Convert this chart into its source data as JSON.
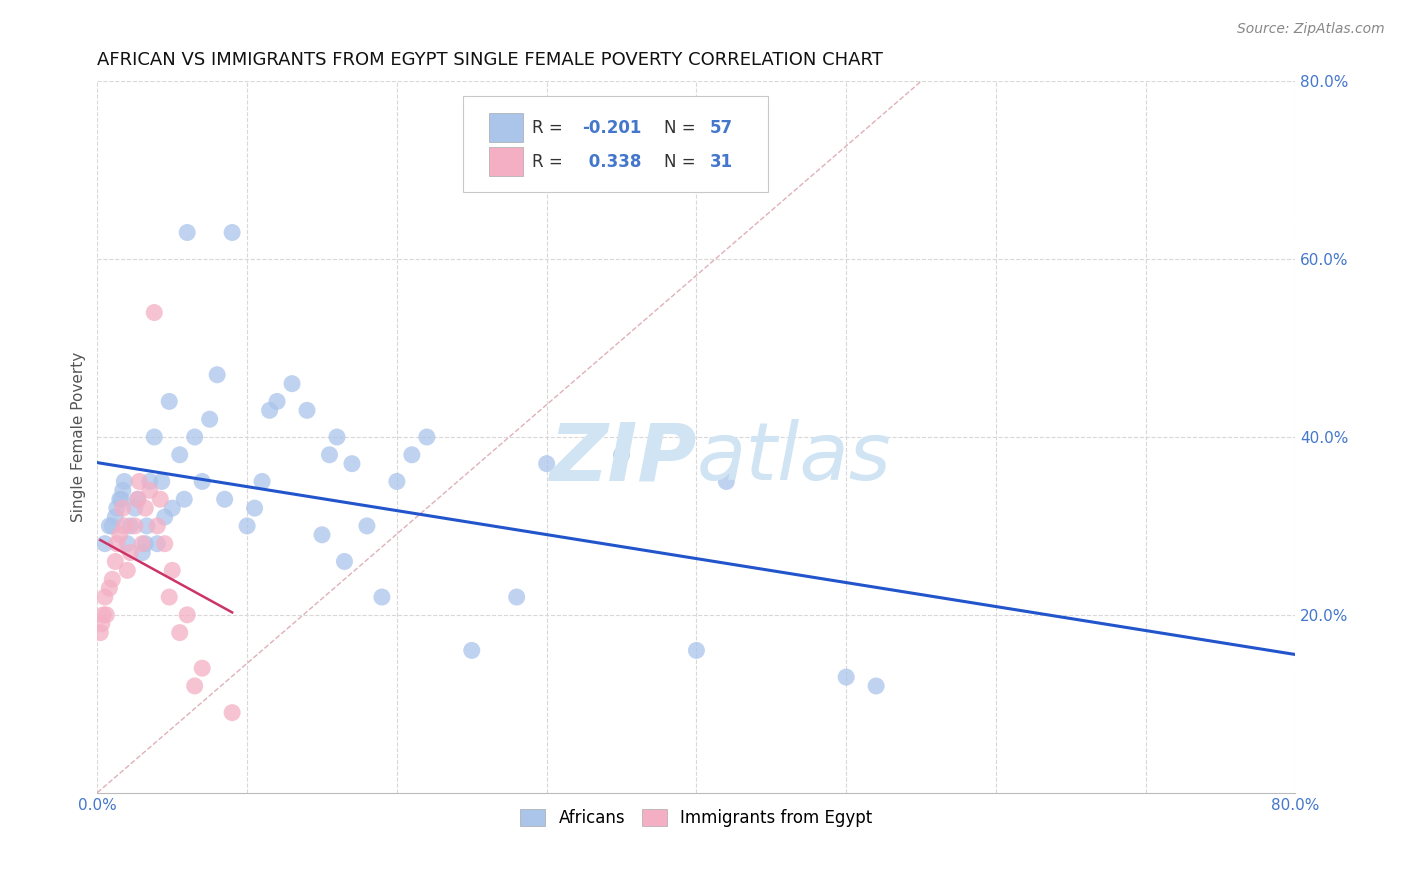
{
  "title": "AFRICAN VS IMMIGRANTS FROM EGYPT SINGLE FEMALE POVERTY CORRELATION CHART",
  "source": "Source: ZipAtlas.com",
  "ylabel": "Single Female Poverty",
  "xlim": [
    0.0,
    0.8
  ],
  "ylim": [
    0.0,
    0.8
  ],
  "xtick_positions": [
    0.0,
    0.1,
    0.2,
    0.3,
    0.4,
    0.5,
    0.6,
    0.7,
    0.8
  ],
  "xticklabels": [
    "0.0%",
    "",
    "",
    "",
    "",
    "",
    "",
    "",
    "80.0%"
  ],
  "ytick_positions": [
    0.2,
    0.4,
    0.6,
    0.8
  ],
  "ytick_labels": [
    "20.0%",
    "40.0%",
    "60.0%",
    "80.0%"
  ],
  "background_color": "#ffffff",
  "grid_color": "#d8d8d8",
  "watermark_zip": "ZIP",
  "watermark_atlas": "atlas",
  "watermark_color": "#d0e4f4",
  "legend_R1": "-0.201",
  "legend_N1": "57",
  "legend_R2": "0.338",
  "legend_N2": "31",
  "africans_color": "#aac4ea",
  "egypt_color": "#f4afc4",
  "line_african_color": "#2255cc",
  "line_egypt_color": "#cc3366",
  "diagonal_color": "#e0b0b8",
  "africans_x": [
    0.005,
    0.008,
    0.01,
    0.012,
    0.013,
    0.015,
    0.016,
    0.017,
    0.018,
    0.02,
    0.022,
    0.025,
    0.027,
    0.03,
    0.032,
    0.033,
    0.035,
    0.038,
    0.04,
    0.043,
    0.045,
    0.048,
    0.05,
    0.055,
    0.058,
    0.06,
    0.065,
    0.07,
    0.075,
    0.08,
    0.085,
    0.09,
    0.1,
    0.105,
    0.11,
    0.115,
    0.12,
    0.13,
    0.14,
    0.15,
    0.155,
    0.16,
    0.165,
    0.17,
    0.18,
    0.19,
    0.2,
    0.21,
    0.22,
    0.25,
    0.28,
    0.3,
    0.35,
    0.4,
    0.42,
    0.5,
    0.52
  ],
  "africans_y": [
    0.28,
    0.3,
    0.3,
    0.31,
    0.32,
    0.33,
    0.33,
    0.34,
    0.35,
    0.28,
    0.3,
    0.32,
    0.33,
    0.27,
    0.28,
    0.3,
    0.35,
    0.4,
    0.28,
    0.35,
    0.31,
    0.44,
    0.32,
    0.38,
    0.33,
    0.63,
    0.4,
    0.35,
    0.42,
    0.47,
    0.33,
    0.63,
    0.3,
    0.32,
    0.35,
    0.43,
    0.44,
    0.46,
    0.43,
    0.29,
    0.38,
    0.4,
    0.26,
    0.37,
    0.3,
    0.22,
    0.35,
    0.38,
    0.4,
    0.16,
    0.22,
    0.37,
    0.38,
    0.16,
    0.35,
    0.13,
    0.12
  ],
  "egypt_x": [
    0.002,
    0.003,
    0.004,
    0.005,
    0.006,
    0.008,
    0.01,
    0.012,
    0.013,
    0.015,
    0.017,
    0.018,
    0.02,
    0.022,
    0.025,
    0.027,
    0.028,
    0.03,
    0.032,
    0.035,
    0.038,
    0.04,
    0.042,
    0.045,
    0.048,
    0.05,
    0.055,
    0.06,
    0.065,
    0.07,
    0.09
  ],
  "egypt_y": [
    0.18,
    0.19,
    0.2,
    0.22,
    0.2,
    0.23,
    0.24,
    0.26,
    0.28,
    0.29,
    0.32,
    0.3,
    0.25,
    0.27,
    0.3,
    0.33,
    0.35,
    0.28,
    0.32,
    0.34,
    0.54,
    0.3,
    0.33,
    0.28,
    0.22,
    0.25,
    0.18,
    0.2,
    0.12,
    0.14,
    0.09
  ]
}
